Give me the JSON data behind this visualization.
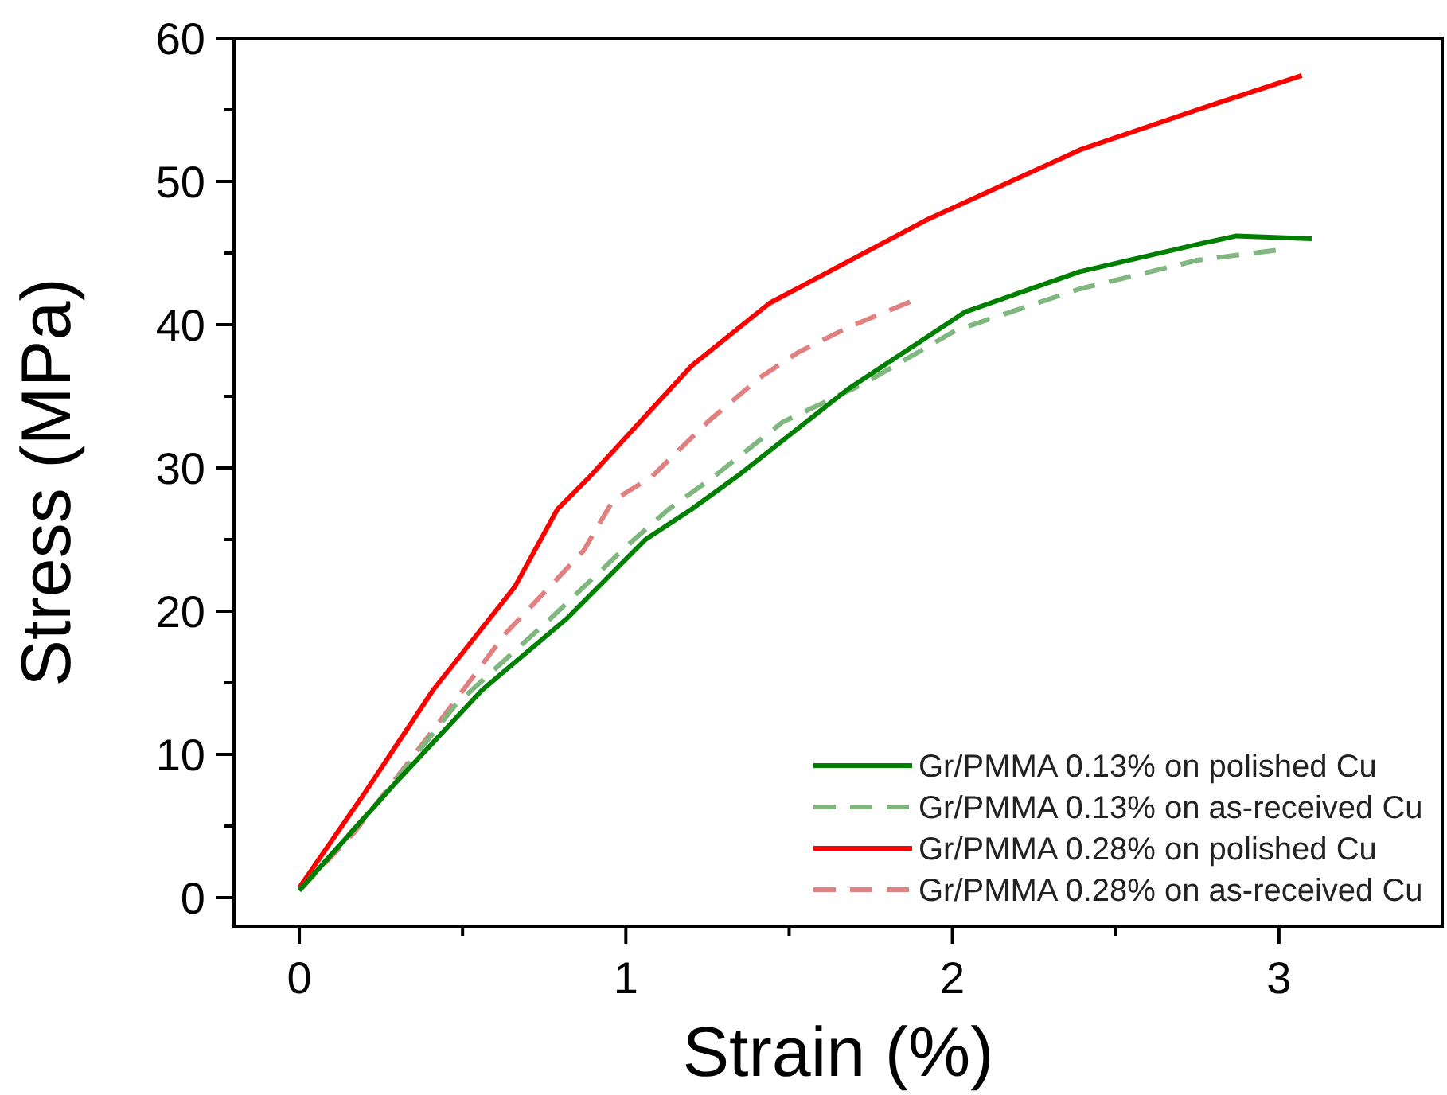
{
  "chart_data": {
    "type": "line",
    "xlabel": "Strain (%)",
    "ylabel": "Stress (MPa)",
    "xlim": [
      -0.2,
      3.5
    ],
    "ylim": [
      -2,
      60
    ],
    "xticks": [
      0,
      {
        "value": 0.5,
        "label": null
      },
      1,
      {
        "value": 1.5,
        "label": null
      },
      2,
      {
        "value": 2.5,
        "label": null
      },
      3
    ],
    "yticks": [
      0,
      {
        "value": 5,
        "label": null
      },
      10,
      {
        "value": 15,
        "label": null
      },
      20,
      {
        "value": 25,
        "label": null
      },
      30,
      {
        "value": 35,
        "label": null
      },
      40,
      {
        "value": 45,
        "label": null
      },
      50,
      {
        "value": 55,
        "label": null
      },
      60
    ],
    "grid": false,
    "legend": "bottom right",
    "marker": "none",
    "series": [
      {
        "name": "Gr/PMMA 0.13% on polished Cu",
        "color": "#008000",
        "line_style": "solid",
        "x": [
          0,
          0.29,
          0.56,
          0.82,
          1.06,
          1.2,
          1.34,
          1.68,
          2.04,
          2.39,
          2.75,
          2.87,
          3.1
        ],
        "values": [
          0.5,
          7.9,
          14.5,
          19.5,
          25,
          27.1,
          29.4,
          35.5,
          40.9,
          43.7,
          45.6,
          46.2,
          46
        ]
      },
      {
        "name": "Gr/PMMA 0.13% on as-received Cu",
        "color": "#7fb77f",
        "line_style": "dashed",
        "x": [
          0,
          0.25,
          0.48,
          0.77,
          1.01,
          1.13,
          1.27,
          1.48,
          1.73,
          2.01,
          2.39,
          2.75,
          2.99
        ],
        "values": [
          0.5,
          6.9,
          13.5,
          19.5,
          24.7,
          27.1,
          29.4,
          33.2,
          35.9,
          39.6,
          42.5,
          44.5,
          45.2
        ]
      },
      {
        "name": "Gr/PMMA 0.28% on polished Cu",
        "color": "#ff0000",
        "line_style": "solid",
        "x": [
          0,
          0.2,
          0.41,
          0.66,
          0.79,
          0.89,
          1.2,
          1.44,
          1.92,
          2.39,
          2.75,
          3.07
        ],
        "values": [
          0.7,
          7.3,
          14.5,
          21.7,
          27.1,
          29.4,
          37.1,
          41.5,
          47.3,
          52.2,
          55,
          57.4
        ]
      },
      {
        "name": "Gr/PMMA 0.28% on as-received Cu",
        "color": "#e08080",
        "line_style": "dashed",
        "x": [
          0,
          0.17,
          0.41,
          0.63,
          0.87,
          0.96,
          1.08,
          1.25,
          1.41,
          1.53,
          1.68,
          1.87
        ],
        "values": [
          0.5,
          4.6,
          11.7,
          18.4,
          24.2,
          27.7,
          29.4,
          33.2,
          36.3,
          38.1,
          39.8,
          41.6
        ]
      }
    ]
  }
}
